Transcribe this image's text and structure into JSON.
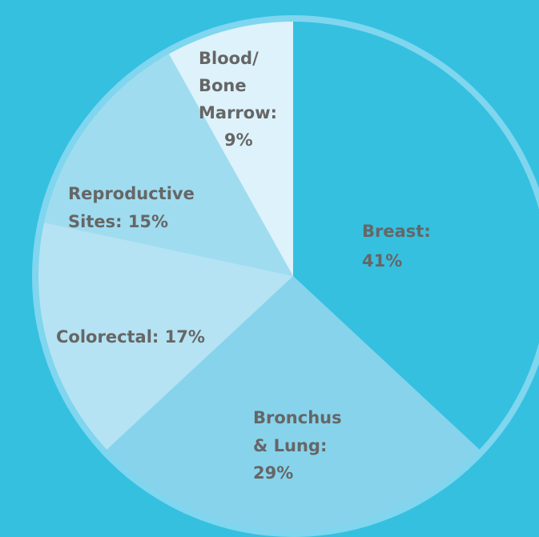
{
  "chart_data": {
    "type": "pie",
    "values": [
      41,
      29,
      17,
      15,
      9
    ],
    "value_labels": [
      [
        "Breast:",
        "41%"
      ],
      [
        "Bronchus",
        "& Lung:",
        "29%"
      ],
      [
        "Colorectal: 17%"
      ],
      [
        "Reproductive",
        "Sites: 15%"
      ],
      [
        "Blood/",
        "Bone",
        "Marrow:",
        "9%"
      ]
    ],
    "colors": [
      "#35c0e0",
      "#87d3ec",
      "#b5e3f3",
      "#a0dcf0",
      "#ddf2fa"
    ]
  }
}
